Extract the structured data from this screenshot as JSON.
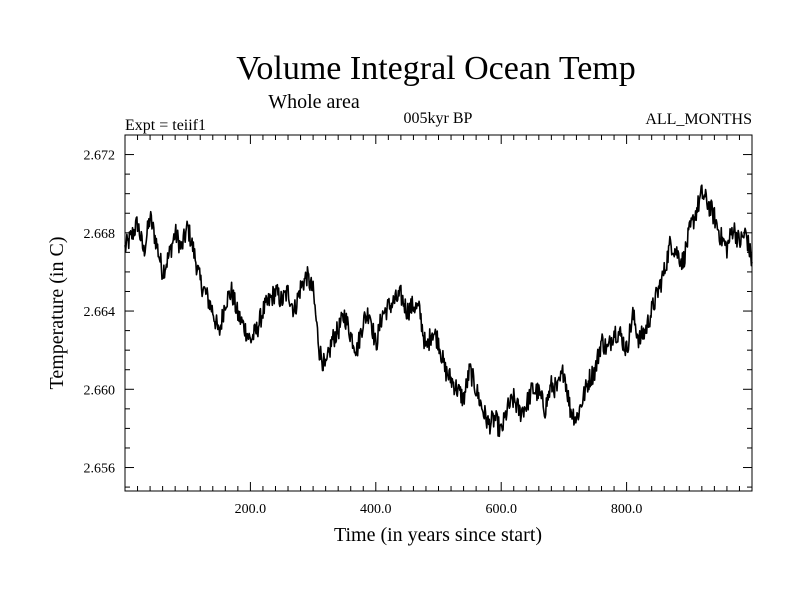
{
  "header": {
    "title": "Volume Integral Ocean Temp",
    "subtitle": "Whole area",
    "experiment": "Expt = teiif1",
    "period": "005kyr BP",
    "months": "ALL_MONTHS"
  },
  "chart_data": {
    "type": "line",
    "title": "Volume Integral Ocean Temp",
    "subtitle": "Whole area",
    "xlabel": "Time (in years since start)",
    "ylabel": "Temperature (in C)",
    "xlim": [
      0,
      1000
    ],
    "ylim": [
      2.6548,
      2.673
    ],
    "xticks": [
      200,
      400,
      600,
      800
    ],
    "xtick_labels": [
      "200.0",
      "400.0",
      "600.0",
      "800.0"
    ],
    "yticks": [
      2.656,
      2.66,
      2.664,
      2.668,
      2.672
    ],
    "ytick_labels": [
      "2.656",
      "2.660",
      "2.664",
      "2.668",
      "2.672"
    ],
    "grid": false,
    "legend": "none",
    "line_color": "#000000",
    "series": [
      {
        "x": [
          0,
          10,
          20,
          30,
          40,
          50,
          60,
          70,
          80,
          90,
          100,
          110,
          120,
          130,
          140,
          150,
          160,
          170,
          180,
          190,
          200,
          210,
          220,
          230,
          240,
          250,
          260,
          270,
          280,
          290,
          300,
          310,
          320,
          330,
          340,
          350,
          360,
          370,
          380,
          390,
          400,
          410,
          420,
          430,
          440,
          450,
          460,
          470,
          480,
          490,
          500,
          510,
          520,
          530,
          540,
          550,
          560,
          570,
          580,
          590,
          600,
          610,
          620,
          630,
          640,
          650,
          660,
          670,
          680,
          690,
          700,
          710,
          720,
          730,
          740,
          750,
          760,
          770,
          780,
          790,
          800,
          810,
          820,
          830,
          840,
          850,
          860,
          870,
          880,
          890,
          900,
          910,
          920,
          930,
          940,
          950,
          960,
          970,
          980,
          990,
          1000
        ],
        "values": [
          2.6672,
          2.6678,
          2.6685,
          2.667,
          2.6688,
          2.6675,
          2.666,
          2.6668,
          2.668,
          2.6672,
          2.6683,
          2.667,
          2.6655,
          2.6648,
          2.664,
          2.6628,
          2.6645,
          2.665,
          2.6638,
          2.6632,
          2.6625,
          2.663,
          2.664,
          2.6645,
          2.665,
          2.6645,
          2.665,
          2.664,
          2.6652,
          2.6658,
          2.665,
          2.662,
          2.661,
          2.6625,
          2.663,
          2.6638,
          2.6628,
          2.662,
          2.6635,
          2.664,
          2.6622,
          2.6638,
          2.6642,
          2.6645,
          2.6648,
          2.664,
          2.6643,
          2.664,
          2.662,
          2.663,
          2.6625,
          2.661,
          2.6605,
          2.66,
          2.6595,
          2.661,
          2.66,
          2.659,
          2.6582,
          2.6585,
          2.6578,
          2.659,
          2.6595,
          2.6588,
          2.6592,
          2.66,
          2.6598,
          2.659,
          2.6602,
          2.66,
          2.661,
          2.659,
          2.6585,
          2.6595,
          2.6605,
          2.661,
          2.6625,
          2.662,
          2.663,
          2.6628,
          2.662,
          2.6638,
          2.6625,
          2.663,
          2.664,
          2.665,
          2.666,
          2.6675,
          2.667,
          2.6665,
          2.668,
          2.669,
          2.67,
          2.6695,
          2.6688,
          2.6678,
          2.6672,
          2.6683,
          2.6675,
          2.668,
          2.6665
        ]
      }
    ]
  }
}
